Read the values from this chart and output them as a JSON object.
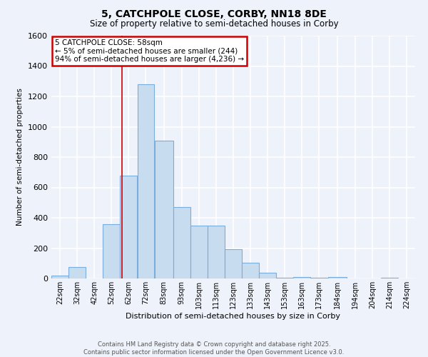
{
  "title": "5, CATCHPOLE CLOSE, CORBY, NN18 8DE",
  "subtitle": "Size of property relative to semi-detached houses in Corby",
  "xlabel": "Distribution of semi-detached houses by size in Corby",
  "ylabel": "Number of semi-detached properties",
  "bar_color": "#c8dcf0",
  "bar_edge_color": "#7aacdc",
  "background_color": "#eef2fa",
  "grid_color": "#ffffff",
  "bin_labels": [
    "22sqm",
    "32sqm",
    "42sqm",
    "52sqm",
    "62sqm",
    "72sqm",
    "83sqm",
    "93sqm",
    "103sqm",
    "113sqm",
    "123sqm",
    "133sqm",
    "143sqm",
    "153sqm",
    "163sqm",
    "173sqm",
    "184sqm",
    "194sqm",
    "204sqm",
    "214sqm",
    "224sqm"
  ],
  "bin_edges": [
    17,
    27,
    37,
    47,
    57,
    67,
    77,
    88,
    98,
    108,
    118,
    128,
    138,
    148,
    158,
    168,
    178,
    189,
    199,
    209,
    219,
    229
  ],
  "counts": [
    20,
    75,
    0,
    360,
    680,
    1280,
    910,
    470,
    350,
    350,
    195,
    105,
    40,
    5,
    8,
    5,
    8,
    0,
    0,
    5,
    0
  ],
  "annotation_title": "5 CATCHPOLE CLOSE: 58sqm",
  "annotation_line1": "← 5% of semi-detached houses are smaller (244)",
  "annotation_line2": "94% of semi-detached houses are larger (4,236) →",
  "annotation_box_color": "#ffffff",
  "annotation_box_edge": "#cc0000",
  "property_line_x": 58,
  "property_line_color": "#cc0000",
  "ylim": [
    0,
    1600
  ],
  "yticks": [
    0,
    200,
    400,
    600,
    800,
    1000,
    1200,
    1400,
    1600
  ],
  "footer_line1": "Contains HM Land Registry data © Crown copyright and database right 2025.",
  "footer_line2": "Contains public sector information licensed under the Open Government Licence v3.0."
}
